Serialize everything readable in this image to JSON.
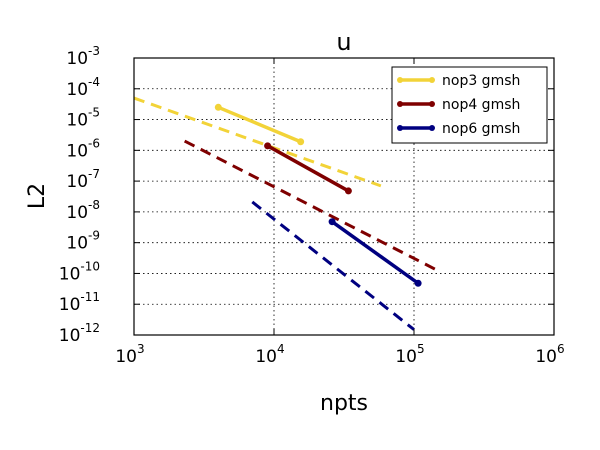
{
  "chart_data": {
    "type": "line",
    "title": "u",
    "xlabel": "npts",
    "ylabel": "L2",
    "xscale": "log",
    "yscale": "log",
    "xlim": [
      1000,
      1000000
    ],
    "ylim": [
      1e-12,
      0.001
    ],
    "grid": true,
    "legend_position": "top-right",
    "x_ticks": [
      {
        "value": 1000,
        "base": "10",
        "exp": "3"
      },
      {
        "value": 10000,
        "base": "10",
        "exp": "4"
      },
      {
        "value": 100000,
        "base": "10",
        "exp": "5"
      },
      {
        "value": 1000000,
        "base": "10",
        "exp": "6"
      }
    ],
    "y_ticks": [
      {
        "value": 1e-12,
        "base": "10",
        "exp": "-12"
      },
      {
        "value": 1e-11,
        "base": "10",
        "exp": "-11"
      },
      {
        "value": 1e-10,
        "base": "10",
        "exp": "-10"
      },
      {
        "value": 1e-09,
        "base": "10",
        "exp": "-9"
      },
      {
        "value": 1e-08,
        "base": "10",
        "exp": "-8"
      },
      {
        "value": 1e-07,
        "base": "10",
        "exp": "-7"
      },
      {
        "value": 1e-06,
        "base": "10",
        "exp": "-6"
      },
      {
        "value": 1e-05,
        "base": "10",
        "exp": "-5"
      },
      {
        "value": 0.0001,
        "base": "10",
        "exp": "-4"
      },
      {
        "value": 0.001,
        "base": "10",
        "exp": "-3"
      }
    ],
    "series": [
      {
        "name": "nop3 gmsh",
        "color": "#f2d338",
        "x": [
          4000,
          15500
        ],
        "y": [
          2.5e-05,
          1.9e-06
        ]
      },
      {
        "name": "nop4 gmsh",
        "color": "#7f0000",
        "x": [
          9000,
          34000
        ],
        "y": [
          1.4e-06,
          4.8e-08
        ]
      },
      {
        "name": "nop6 gmsh",
        "color": "#000080",
        "x": [
          26000,
          107000
        ],
        "y": [
          4.8e-09,
          4.8e-11
        ]
      }
    ],
    "reference_lines": [
      {
        "color": "#f2d338",
        "x": [
          1000,
          58000
        ],
        "y": [
          5e-05,
          7e-08
        ]
      },
      {
        "color": "#7f0000",
        "x": [
          2300,
          145000
        ],
        "y": [
          2e-06,
          1.3e-10
        ]
      },
      {
        "color": "#000080",
        "x": [
          7000,
          100000
        ],
        "y": [
          2.1e-08,
          1.5e-12
        ]
      }
    ]
  }
}
